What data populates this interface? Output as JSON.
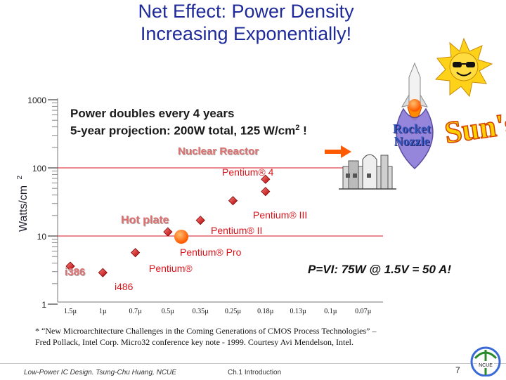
{
  "slide": {
    "title_line1": "Net Effect:  Power Density",
    "title_line2": "Increasing Exponentially!",
    "callout_line1": "Power doubles every 4 years",
    "callout_line2": "5-year projection:  200W total, 125 W/cm",
    "callout_sup": "2",
    "callout_end": " !",
    "pvi": "P=VI:  75W @ 1.5V = 50 A!",
    "rocket_line1": "Rocket",
    "rocket_line2": "Nozzle",
    "suns_text": "Sun's",
    "footnote_line1": "* “New Microarchitecture Challenges in the Coming Generations of CMOS Process Technologies” –",
    "footnote_line2": "Fred Pollack, Intel Corp. Micro32 conference key note - 1999.  Courtesy Avi Mendelson, Intel.",
    "footer_left": "Low-Power IC Design.  Tsung-Chu Huang, NCUE",
    "footer_center": "Ch.1 Introduction",
    "page_number": "7",
    "logo_text": "NCUE"
  },
  "chart_data": {
    "type": "scatter",
    "title": "Net Effect:  Power Density Increasing Exponentially!",
    "ylabel": "Watts/cm",
    "ylabel_sup": "2",
    "yscale": "log",
    "ylim": [
      1,
      1000
    ],
    "yticks": [
      "1",
      "10",
      "100",
      "1000"
    ],
    "categories": [
      "1.5µ",
      "1µ",
      "0.7µ",
      "0.5µ",
      "0.35µ",
      "0.25µ",
      "0.18µ",
      "0.13µ",
      "0.1µ",
      "0.07µ"
    ],
    "reference_lines": [
      {
        "label": "Nuclear Reactor",
        "value": 100
      },
      {
        "label": "Hot plate",
        "value": 10
      }
    ],
    "points": [
      {
        "label": "i386",
        "category": "1.5µ",
        "value": 3.6
      },
      {
        "label": "i486",
        "category": "1µ",
        "value": 2.9
      },
      {
        "label": "Pentium®",
        "category": "0.7µ",
        "value": 5.7
      },
      {
        "label": "Pentium® Pro",
        "category": "0.5µ",
        "value": 11.5
      },
      {
        "label": "Pentium® II",
        "category": "0.35µ",
        "value": 17
      },
      {
        "label": "Pentium® III",
        "category": "0.25µ",
        "value": 33
      },
      {
        "label": "Pentium® 4",
        "category": "0.18µ",
        "value": 45
      },
      {
        "label": "",
        "category": "0.18µ",
        "value": 68
      }
    ],
    "colors": {
      "marker": "#e8252a",
      "reference_line": "#d8141b",
      "projection": "#ff6a00"
    }
  }
}
